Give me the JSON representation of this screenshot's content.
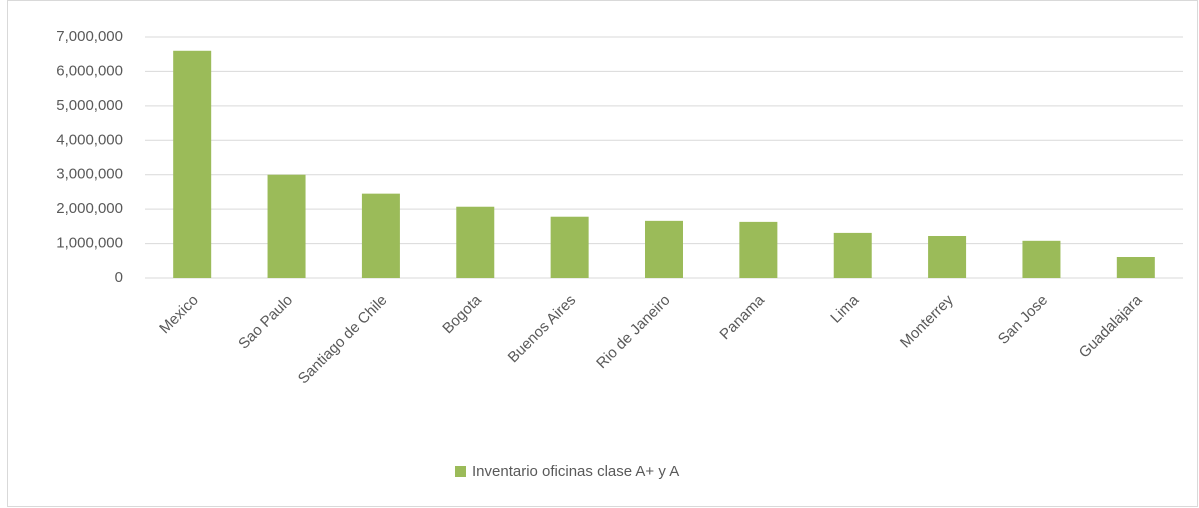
{
  "chart_data": {
    "type": "bar",
    "categories": [
      "Mexico",
      "Sao Paulo",
      "Santiago de Chile",
      "Bogota",
      "Buenos Aires",
      "Rio de Janeiro",
      "Panama",
      "Lima",
      "Monterrey",
      "San Jose",
      "Guadalajara"
    ],
    "series": [
      {
        "name": "Inventario oficinas clase A+ y A",
        "color": "#9bbb59",
        "values": [
          6600000,
          3000000,
          2450000,
          2070000,
          1780000,
          1660000,
          1630000,
          1310000,
          1220000,
          1080000,
          610000
        ]
      }
    ],
    "ylim": [
      0,
      7000000
    ],
    "yticks": [
      0,
      {
        "value": 1000000,
        "label": "1,000,000"
      },
      {
        "value": 2000000,
        "label": "2,000,000"
      },
      {
        "value": 3000000,
        "label": "3,000,000"
      },
      {
        "value": 4000000,
        "label": "4,000,000"
      },
      {
        "value": 5000000,
        "label": "5,000,000"
      },
      {
        "value": 6000000,
        "label": "6,000,000"
      },
      {
        "value": 7000000,
        "label": "7,000,000"
      }
    ],
    "grid": true,
    "legend": "bottom"
  }
}
